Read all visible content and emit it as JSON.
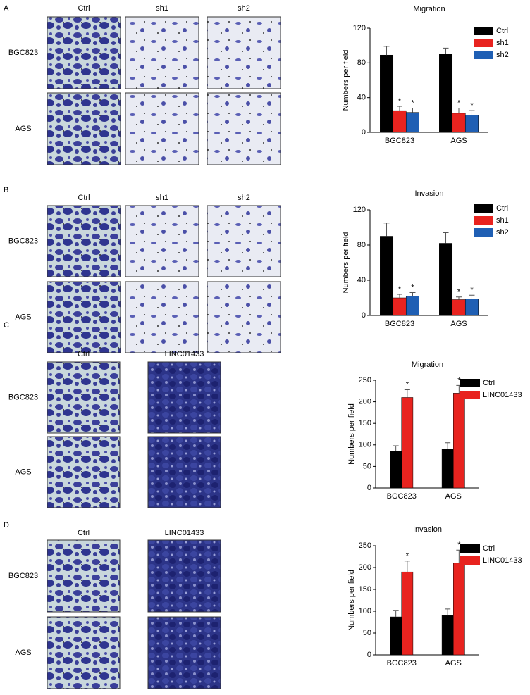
{
  "panels": [
    {
      "label": "A",
      "columns": [
        "Ctrl",
        "sh1",
        "sh2"
      ],
      "rows": [
        "BGC823",
        "AGS"
      ]
    },
    {
      "label": "B",
      "columns": [
        "Ctrl",
        "sh1",
        "sh2"
      ],
      "rows": [
        "BGC823",
        "AGS"
      ]
    },
    {
      "label": "C",
      "columns": [
        "Ctrl",
        "LINC01433"
      ],
      "rows": [
        "BGC823",
        "AGS"
      ]
    },
    {
      "label": "D",
      "columns": [
        "Ctrl",
        "LINC01433"
      ],
      "rows": [
        "BGC823",
        "AGS"
      ]
    }
  ],
  "chart_data": [
    {
      "type": "bar",
      "title": "Migration",
      "y_label": "Numbers per field",
      "categories": [
        "BGC823",
        "AGS"
      ],
      "series": [
        {
          "name": "Ctrl",
          "color": "#000000",
          "values": [
            89,
            90
          ],
          "errors": [
            10,
            7
          ]
        },
        {
          "name": "sh1",
          "color": "#e8231f",
          "values": [
            25,
            22
          ],
          "errors": [
            5,
            6
          ],
          "significance": [
            "*",
            "*"
          ]
        },
        {
          "name": "sh2",
          "color": "#1f5fb4",
          "values": [
            23,
            20
          ],
          "errors": [
            5,
            5
          ],
          "significance": [
            "*",
            "*"
          ]
        }
      ],
      "ylim": [
        0,
        120
      ],
      "yticks": [
        0,
        40,
        80,
        120
      ]
    },
    {
      "type": "bar",
      "title": "Invasion",
      "y_label": "Numbers per field",
      "categories": [
        "BGC823",
        "AGS"
      ],
      "series": [
        {
          "name": "Ctrl",
          "color": "#000000",
          "values": [
            90,
            82
          ],
          "errors": [
            15,
            12
          ]
        },
        {
          "name": "sh1",
          "color": "#e8231f",
          "values": [
            20,
            18
          ],
          "errors": [
            4,
            3
          ],
          "significance": [
            "*",
            "*"
          ]
        },
        {
          "name": "sh2",
          "color": "#1f5fb4",
          "values": [
            22,
            19
          ],
          "errors": [
            4,
            4
          ],
          "significance": [
            "*",
            "*"
          ]
        }
      ],
      "ylim": [
        0,
        120
      ],
      "yticks": [
        0,
        40,
        80,
        120
      ]
    },
    {
      "type": "bar",
      "title": "Migration",
      "y_label": "Numbers per field",
      "categories": [
        "BGC823",
        "AGS"
      ],
      "series": [
        {
          "name": "Ctrl",
          "color": "#000000",
          "values": [
            85,
            90
          ],
          "errors": [
            13,
            15
          ]
        },
        {
          "name": "LINC01433",
          "color": "#e8231f",
          "values": [
            210,
            220
          ],
          "errors": [
            18,
            18
          ],
          "significance": [
            "*",
            "*"
          ]
        }
      ],
      "ylim": [
        0,
        250
      ],
      "yticks": [
        0,
        50,
        100,
        150,
        200,
        250
      ]
    },
    {
      "type": "bar",
      "title": "Invasion",
      "y_label": "Numbers per field",
      "categories": [
        "BGC823",
        "AGS"
      ],
      "series": [
        {
          "name": "Ctrl",
          "color": "#000000",
          "values": [
            87,
            90
          ],
          "errors": [
            15,
            15
          ]
        },
        {
          "name": "LINC01433",
          "color": "#e8231f",
          "values": [
            190,
            210
          ],
          "errors": [
            25,
            30
          ],
          "significance": [
            "*",
            "*"
          ]
        }
      ],
      "ylim": [
        0,
        250
      ],
      "yticks": [
        0,
        50,
        100,
        150,
        200,
        250
      ]
    }
  ]
}
